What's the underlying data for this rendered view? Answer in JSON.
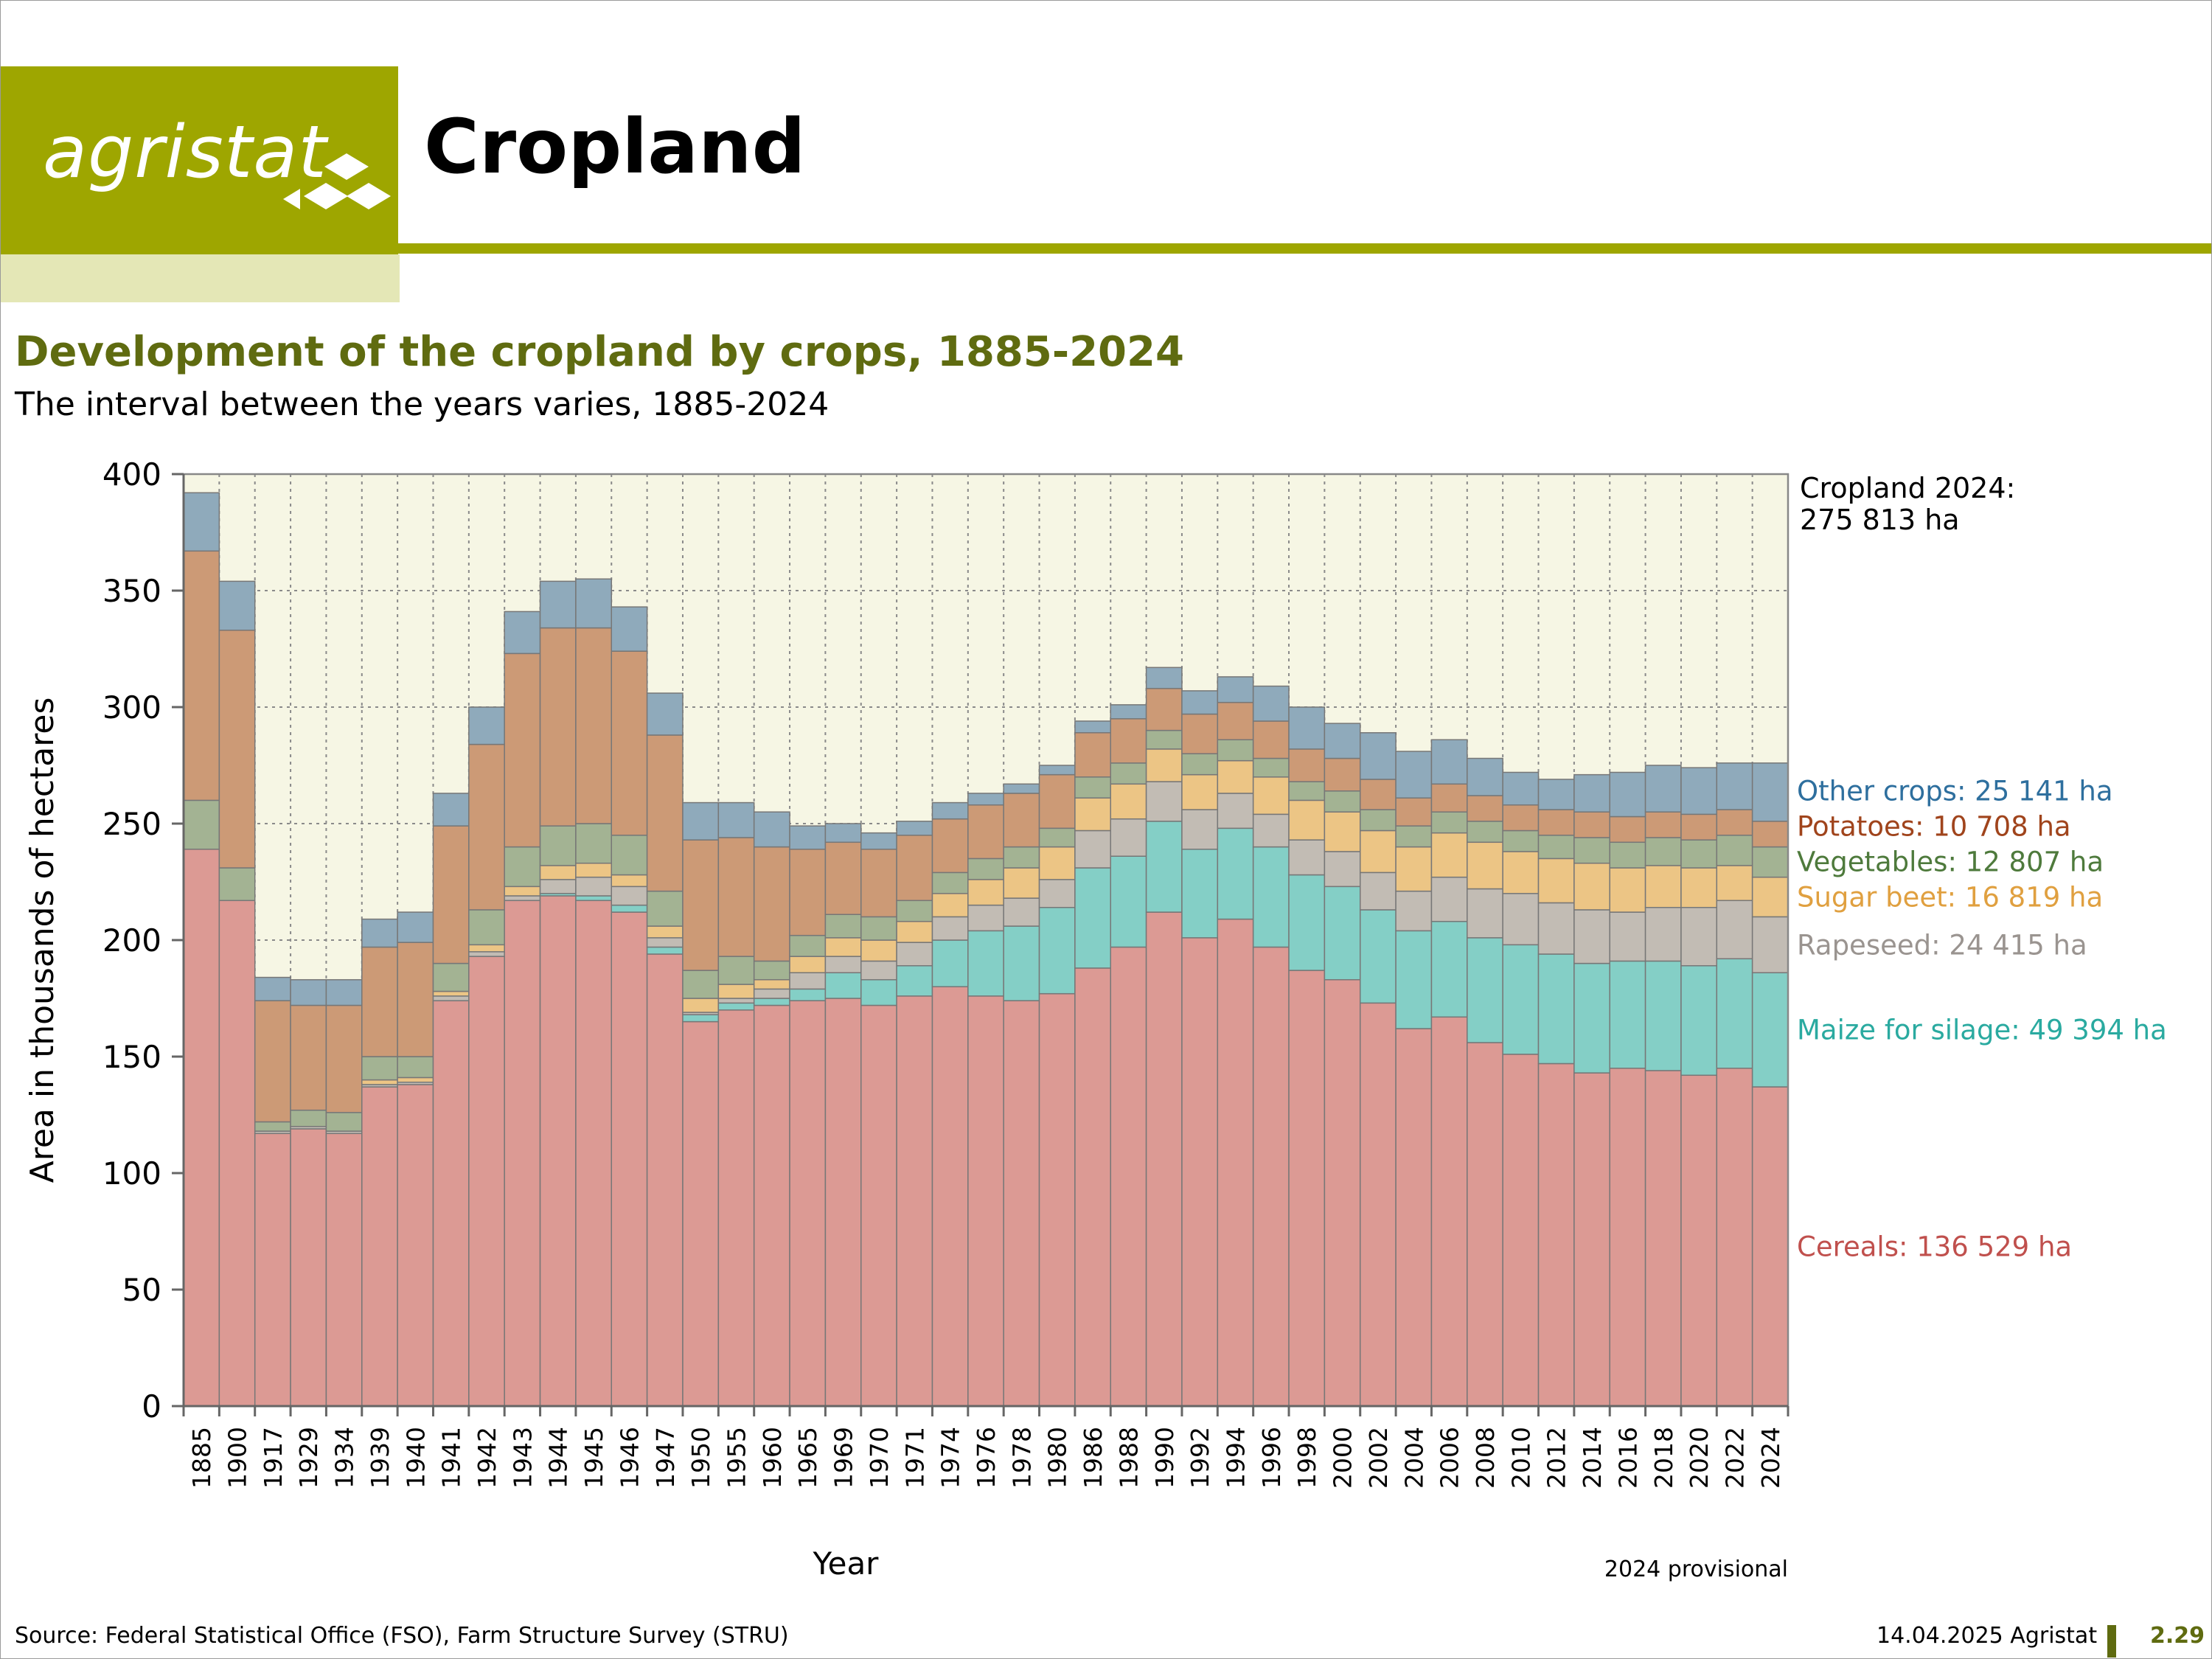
{
  "header": {
    "logo_text": "agristat",
    "title": "Cropland"
  },
  "colors": {
    "brand_green": "#9ea600",
    "brand_dark": "#5f6b10",
    "plot_background": "#f6f6e4"
  },
  "footer": {
    "source": "Source: Federal Statistical Office (FSO), Farm Structure Survey (STRU)",
    "date": "14.04.2025 Agristat",
    "slide_number": "2.29"
  },
  "chart_data": {
    "type": "bar",
    "stacked": true,
    "title": "Development of the cropland by crops, 1885-2024",
    "subtitle": "The interval between the years varies, 1885-2024",
    "xlabel": "Year",
    "ylabel": "Area in thousands of hectares",
    "ylim": [
      0,
      400
    ],
    "yticks": [
      0,
      50,
      100,
      150,
      200,
      250,
      300,
      350,
      400
    ],
    "grid": true,
    "note": "2024 provisional",
    "total_label": "Cropland 2024:",
    "total_value": "275 813 ha",
    "categories": [
      "1885",
      "1900",
      "1917",
      "1929",
      "1934",
      "1939",
      "1940",
      "1941",
      "1942",
      "1943",
      "1944",
      "1945",
      "1946",
      "1947",
      "1950",
      "1955",
      "1960",
      "1965",
      "1969",
      "1970",
      "1971",
      "1974",
      "1976",
      "1978",
      "1980",
      "1986",
      "1988",
      "1990",
      "1992",
      "1994",
      "1996",
      "1998",
      "2000",
      "2002",
      "2004",
      "2006",
      "2008",
      "2010",
      "2012",
      "2014",
      "2016",
      "2018",
      "2020",
      "2022",
      "2024"
    ],
    "series": [
      {
        "name": "Cereals",
        "label": "Cereals: 136 529 ha",
        "color": "#dc9a94",
        "values": [
          239,
          217,
          117,
          119,
          117,
          137,
          138,
          174,
          193,
          217,
          219,
          217,
          212,
          194,
          165,
          170,
          172,
          174,
          175,
          172,
          176,
          180,
          176,
          174,
          177,
          188,
          197,
          212,
          201,
          209,
          197,
          187,
          183,
          173,
          162,
          167,
          156,
          151,
          147,
          143,
          145,
          144,
          142,
          145,
          137
        ]
      },
      {
        "name": "Maize for silage",
        "label": "Maize for silage: 49 394 ha",
        "color": "#84cfc6",
        "values": [
          0,
          0,
          0,
          0,
          0,
          0,
          0,
          0,
          0,
          0,
          1,
          2,
          3,
          3,
          3,
          3,
          3,
          5,
          11,
          11,
          13,
          20,
          28,
          32,
          37,
          43,
          39,
          39,
          38,
          39,
          43,
          41,
          40,
          40,
          42,
          41,
          45,
          47,
          47,
          47,
          46,
          47,
          47,
          47,
          49
        ]
      },
      {
        "name": "Rapeseed",
        "label": "Rapeseed: 24 415 ha",
        "color": "#c2bcb4",
        "values": [
          0,
          0,
          1,
          1,
          1,
          1,
          1,
          2,
          2,
          2,
          6,
          8,
          8,
          4,
          1,
          2,
          4,
          7,
          7,
          8,
          10,
          10,
          11,
          12,
          12,
          16,
          16,
          17,
          17,
          15,
          14,
          15,
          15,
          16,
          17,
          19,
          21,
          22,
          22,
          23,
          21,
          23,
          25,
          25,
          24
        ]
      },
      {
        "name": "Sugar beet",
        "label": "Sugar beet: 16 819 ha",
        "color": "#ecc585",
        "values": [
          0,
          0,
          0,
          0,
          0,
          2,
          2,
          2,
          3,
          4,
          6,
          6,
          5,
          5,
          6,
          6,
          4,
          7,
          8,
          9,
          9,
          10,
          11,
          13,
          14,
          14,
          15,
          14,
          15,
          14,
          16,
          17,
          17,
          18,
          19,
          19,
          20,
          18,
          19,
          20,
          19,
          18,
          17,
          15,
          17
        ]
      },
      {
        "name": "Vegetables",
        "label": "Vegetables: 12 807 ha",
        "color": "#a3b393",
        "values": [
          21,
          14,
          4,
          7,
          8,
          10,
          9,
          12,
          15,
          17,
          17,
          17,
          17,
          15,
          12,
          12,
          8,
          9,
          10,
          10,
          9,
          9,
          9,
          9,
          8,
          9,
          9,
          8,
          9,
          9,
          8,
          8,
          9,
          9,
          9,
          9,
          9,
          9,
          10,
          11,
          11,
          12,
          12,
          13,
          13
        ]
      },
      {
        "name": "Potatoes",
        "label": "Potatoes: 10 708 ha",
        "color": "#cc9a76",
        "values": [
          107,
          102,
          52,
          45,
          46,
          47,
          49,
          59,
          71,
          83,
          85,
          84,
          79,
          67,
          56,
          51,
          49,
          37,
          31,
          29,
          28,
          23,
          23,
          23,
          23,
          19,
          19,
          18,
          17,
          16,
          16,
          14,
          14,
          13,
          12,
          12,
          11,
          11,
          11,
          11,
          11,
          11,
          11,
          11,
          11
        ]
      },
      {
        "name": "Other crops",
        "label": "Other crops: 25 141 ha",
        "color": "#8faabb",
        "values": [
          25,
          21,
          10,
          11,
          11,
          12,
          13,
          14,
          16,
          18,
          20,
          21,
          19,
          18,
          16,
          15,
          15,
          10,
          8,
          7,
          6,
          7,
          5,
          4,
          4,
          5,
          6,
          9,
          10,
          11,
          15,
          18,
          15,
          20,
          20,
          19,
          16,
          14,
          13,
          16,
          19,
          20,
          20,
          20,
          25
        ]
      }
    ]
  }
}
